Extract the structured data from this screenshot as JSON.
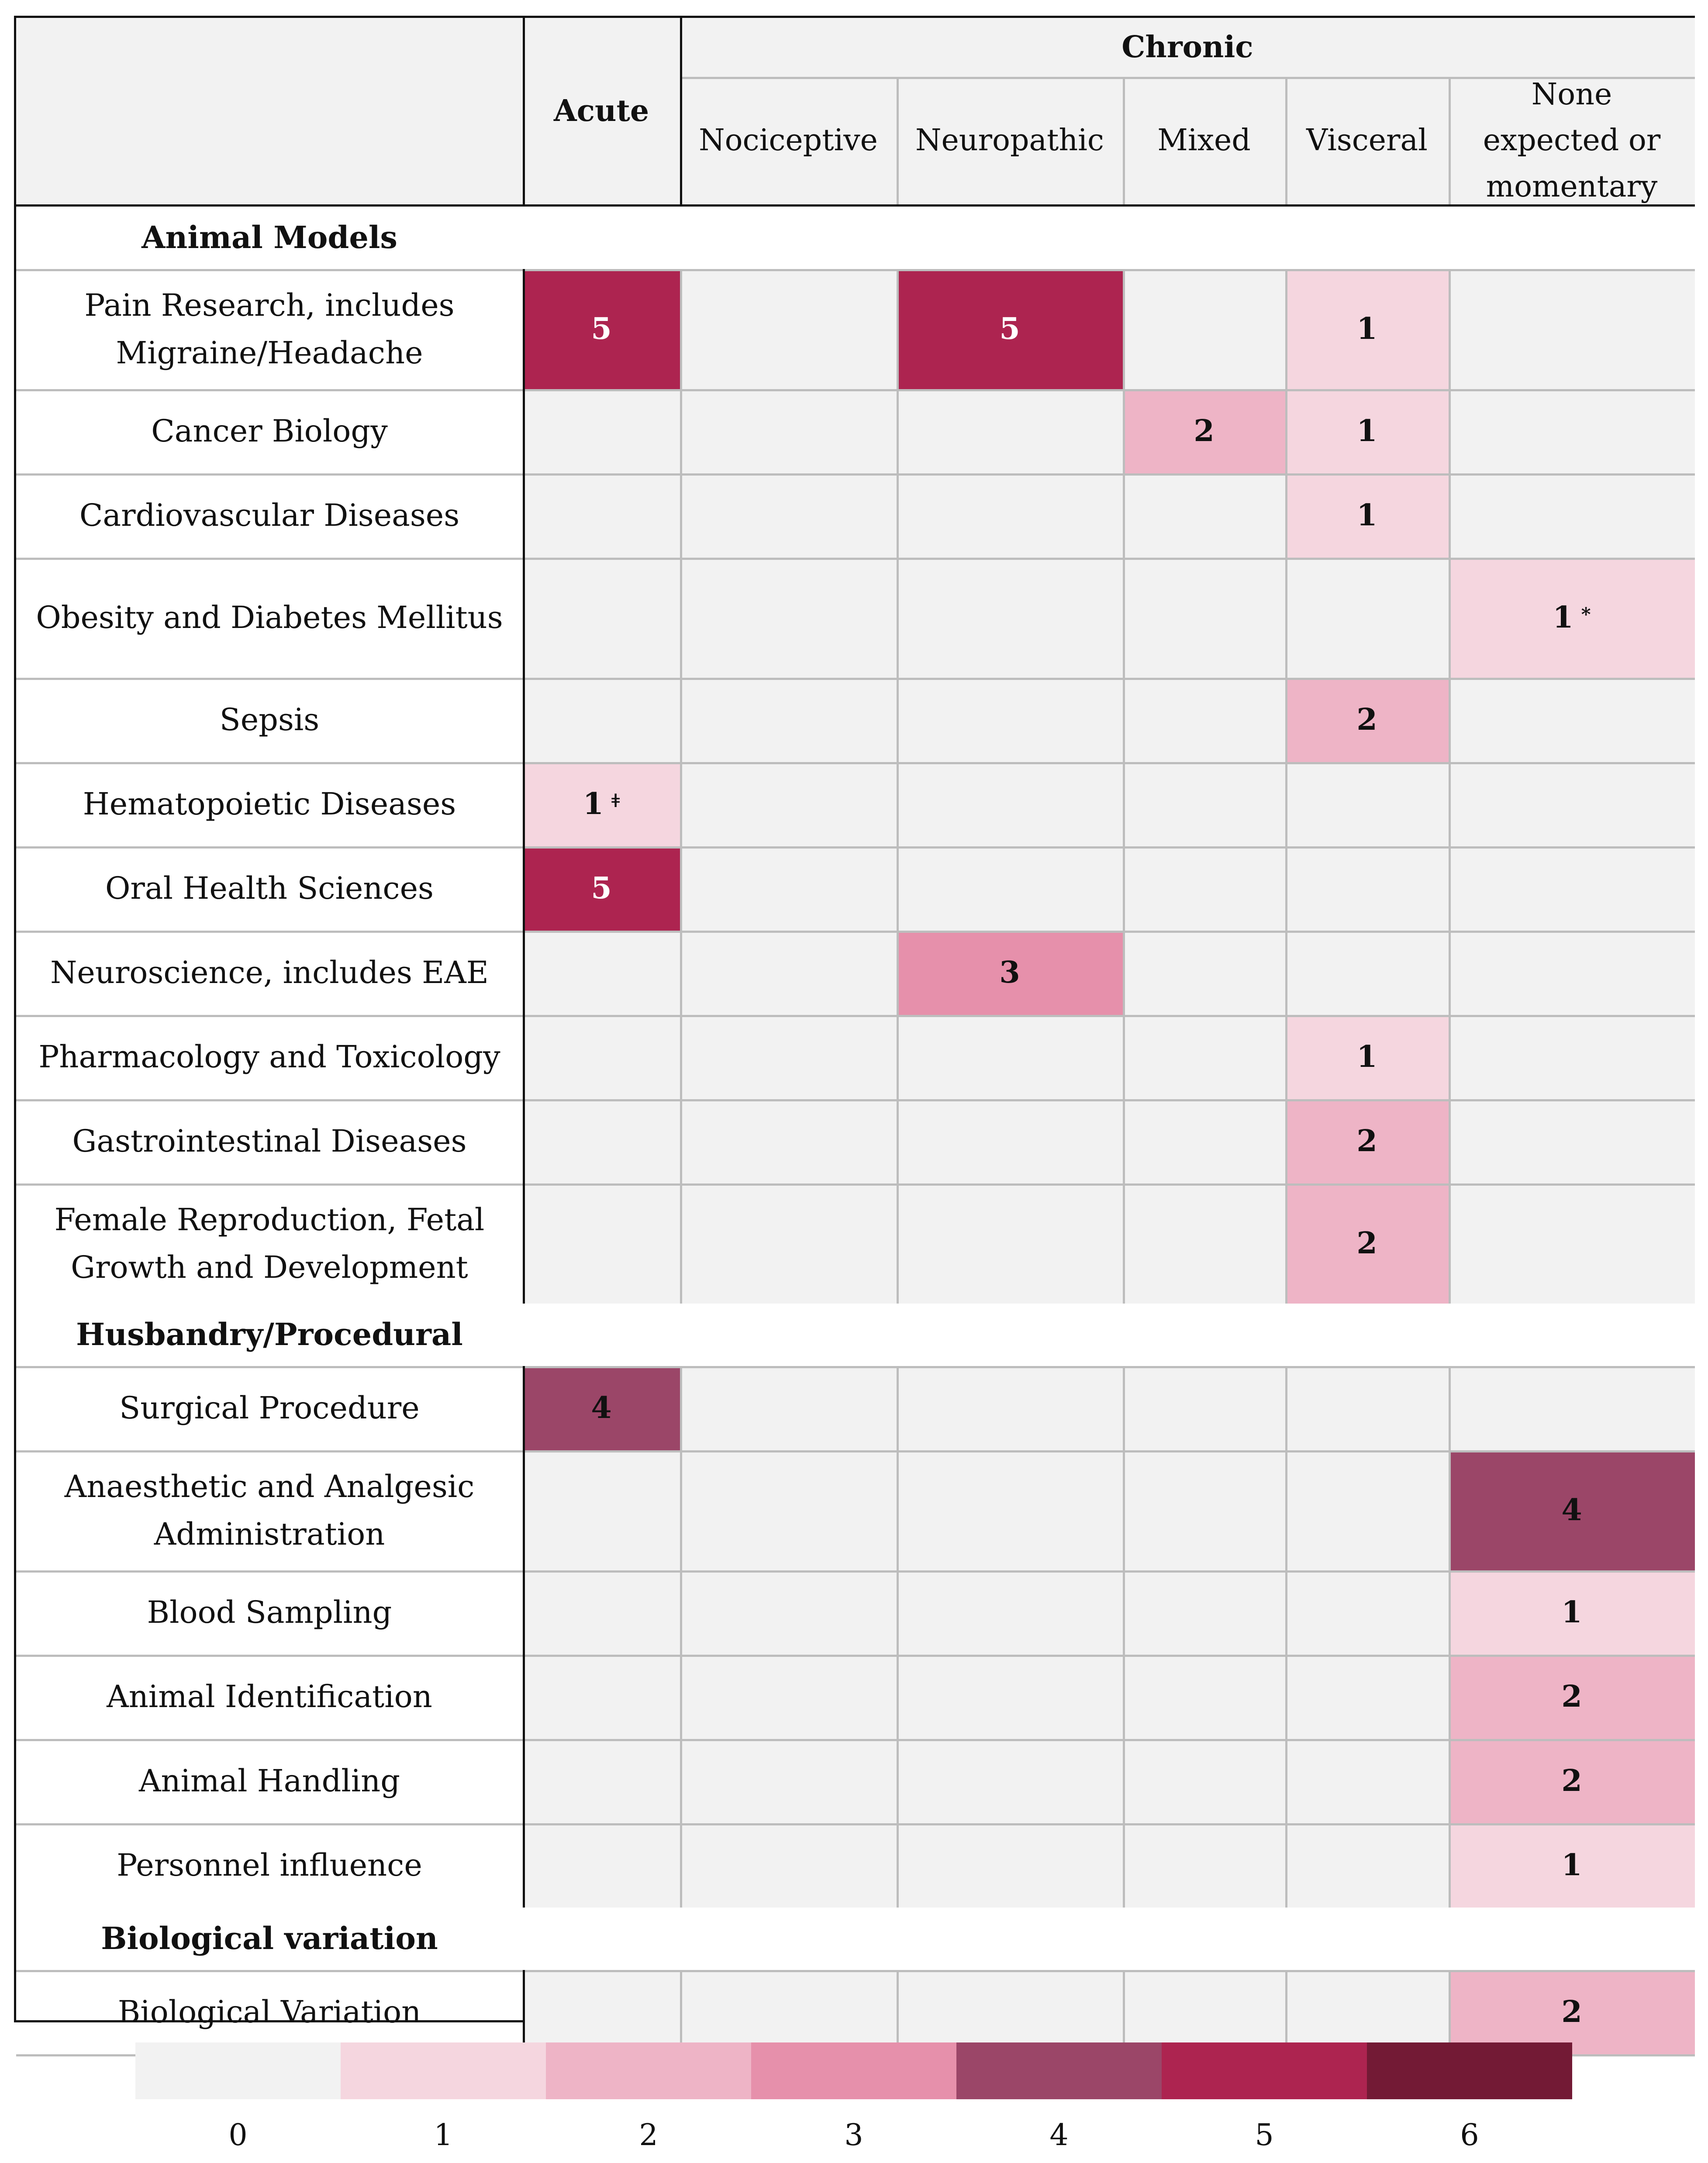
{
  "chart_data": {
    "type": "heatmap",
    "title": "",
    "header": {
      "acute": "Acute",
      "chronic": "Chronic",
      "chronic_subtypes": [
        "Nociceptive",
        "Neuropathic",
        "Mixed",
        "Visceral",
        "None expected or momentary"
      ]
    },
    "columns": [
      "Acute",
      "Nociceptive",
      "Neuropathic",
      "Mixed",
      "Visceral",
      "None expected or momentary"
    ],
    "sections": [
      {
        "title": "Animal Models",
        "rows": [
          {
            "label": "Pain Research, includes Migraine/Headache",
            "values": [
              5,
              null,
              5,
              null,
              1,
              null
            ],
            "marks": [
              "",
              "",
              "",
              "",
              "",
              ""
            ]
          },
          {
            "label": "Cancer Biology",
            "values": [
              null,
              null,
              null,
              2,
              1,
              null
            ],
            "marks": [
              "",
              "",
              "",
              "",
              "",
              ""
            ]
          },
          {
            "label": "Cardiovascular Diseases",
            "values": [
              null,
              null,
              null,
              null,
              1,
              null
            ],
            "marks": [
              "",
              "",
              "",
              "",
              "",
              ""
            ]
          },
          {
            "label": "Obesity and Diabetes Mellitus",
            "values": [
              null,
              null,
              null,
              null,
              null,
              1
            ],
            "marks": [
              "",
              "",
              "",
              "",
              "",
              "*"
            ]
          },
          {
            "label": "Sepsis",
            "values": [
              null,
              null,
              null,
              null,
              2,
              null
            ],
            "marks": [
              "",
              "",
              "",
              "",
              "",
              ""
            ]
          },
          {
            "label": "Hematopoietic Diseases",
            "values": [
              1,
              null,
              null,
              null,
              null,
              null
            ],
            "marks": [
              "ǂ",
              "",
              "",
              "",
              "",
              ""
            ]
          },
          {
            "label": "Oral Health Sciences",
            "values": [
              5,
              null,
              null,
              null,
              null,
              null
            ],
            "marks": [
              "",
              "",
              "",
              "",
              "",
              ""
            ]
          },
          {
            "label": "Neuroscience, includes EAE",
            "values": [
              null,
              null,
              3,
              null,
              null,
              null
            ],
            "marks": [
              "",
              "",
              "",
              "",
              "",
              ""
            ]
          },
          {
            "label": "Pharmacology and Toxicology",
            "values": [
              null,
              null,
              null,
              null,
              1,
              null
            ],
            "marks": [
              "",
              "",
              "",
              "",
              "",
              ""
            ]
          },
          {
            "label": "Gastrointestinal Diseases",
            "values": [
              null,
              null,
              null,
              null,
              2,
              null
            ],
            "marks": [
              "",
              "",
              "",
              "",
              "",
              ""
            ]
          },
          {
            "label": "Female Reproduction, Fetal Growth and Development",
            "values": [
              null,
              null,
              null,
              null,
              2,
              null
            ],
            "marks": [
              "",
              "",
              "",
              "",
              "",
              ""
            ]
          }
        ]
      },
      {
        "title": "Husbandry/Procedural",
        "rows": [
          {
            "label": "Surgical Procedure",
            "values": [
              4,
              null,
              null,
              null,
              null,
              null
            ],
            "marks": [
              "",
              "",
              "",
              "",
              "",
              ""
            ]
          },
          {
            "label": "Anaesthetic and Analgesic Administration",
            "values": [
              null,
              null,
              null,
              null,
              null,
              4
            ],
            "marks": [
              "",
              "",
              "",
              "",
              "",
              ""
            ]
          },
          {
            "label": "Blood Sampling",
            "values": [
              null,
              null,
              null,
              null,
              null,
              1
            ],
            "marks": [
              "",
              "",
              "",
              "",
              "",
              ""
            ]
          },
          {
            "label": "Animal Identification",
            "values": [
              null,
              null,
              null,
              null,
              null,
              2
            ],
            "marks": [
              "",
              "",
              "",
              "",
              "",
              ""
            ]
          },
          {
            "label": "Animal Handling",
            "values": [
              null,
              null,
              null,
              null,
              null,
              2
            ],
            "marks": [
              "",
              "",
              "",
              "",
              "",
              ""
            ]
          },
          {
            "label": "Personnel influence",
            "values": [
              null,
              null,
              null,
              null,
              null,
              1
            ],
            "marks": [
              "",
              "",
              "",
              "",
              "",
              ""
            ]
          }
        ]
      },
      {
        "title": "Biological variation",
        "rows": [
          {
            "label": "Biological Variation",
            "values": [
              null,
              null,
              null,
              null,
              null,
              2
            ],
            "marks": [
              "",
              "",
              "",
              "",
              "",
              ""
            ]
          }
        ]
      }
    ],
    "legend": {
      "values": [
        0,
        1,
        2,
        3,
        4,
        5,
        6
      ],
      "labels": [
        "0",
        "1",
        "2",
        "3",
        "4",
        "5",
        "6"
      ],
      "colors": [
        "#f2f2f2",
        "#f5d6df",
        "#eeb4c6",
        "#e690ab",
        "#9b4668",
        "#ad2450",
        "#731a35"
      ],
      "text_colors": [
        "#111111",
        "#111111",
        "#111111",
        "#111111",
        "#111111",
        "#ffffff",
        "#ffffff"
      ]
    }
  }
}
